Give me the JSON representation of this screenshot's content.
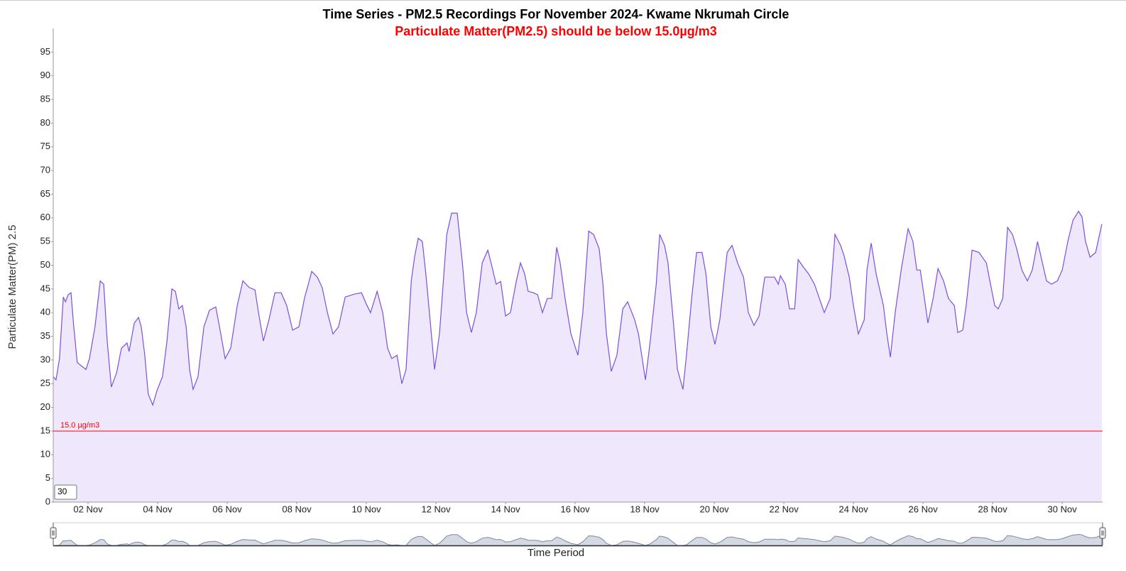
{
  "chart_data": {
    "type": "area",
    "title": "Time Series - PM2.5 Recordings For November 2024- Kwame Nkrumah Circle",
    "subtitle": "Particulate Matter(PM2.5) should be below 15.0µg/m3",
    "y_label": "Particulate Matter(PM) 2.5",
    "x_label": "Time Period",
    "threshold": {
      "value": 15,
      "label": "15.0 µg/m3",
      "color": "#ff0000"
    },
    "window": "30",
    "color": "#7b4fe0",
    "fill_color": "#efe8fc",
    "navigator_color": "#7a8aa8",
    "navigator_fill": "#d5d9e2",
    "grid": false,
    "xlim": [
      1,
      31.16
    ],
    "xticks": [
      {
        "value": 2,
        "label": "02 Nov"
      },
      {
        "value": 4,
        "label": "04 Nov"
      },
      {
        "value": 6,
        "label": "06 Nov"
      },
      {
        "value": 8,
        "label": "08 Nov"
      },
      {
        "value": 10,
        "label": "10 Nov"
      },
      {
        "value": 12,
        "label": "12 Nov"
      },
      {
        "value": 14,
        "label": "14 Nov"
      },
      {
        "value": 16,
        "label": "16 Nov"
      },
      {
        "value": 18,
        "label": "18 Nov"
      },
      {
        "value": 20,
        "label": "20 Nov"
      },
      {
        "value": 22,
        "label": "22 Nov"
      },
      {
        "value": 24,
        "label": "24 Nov"
      },
      {
        "value": 26,
        "label": "26 Nov"
      },
      {
        "value": 28,
        "label": "28 Nov"
      },
      {
        "value": 30,
        "label": "30 Nov"
      }
    ],
    "ylim": [
      0,
      100
    ],
    "yticks": [
      0,
      5,
      10,
      15,
      20,
      25,
      30,
      35,
      40,
      45,
      50,
      55,
      60,
      65,
      70,
      75,
      80,
      85,
      90,
      95
    ],
    "x": [
      1.0,
      1.08,
      1.18,
      1.29,
      1.35,
      1.43,
      1.51,
      1.59,
      1.69,
      1.8,
      1.94,
      2.04,
      2.2,
      2.35,
      2.45,
      2.55,
      2.67,
      2.82,
      2.96,
      3.12,
      3.18,
      3.33,
      3.45,
      3.53,
      3.63,
      3.73,
      3.86,
      3.98,
      4.14,
      4.27,
      4.41,
      4.51,
      4.61,
      4.71,
      4.82,
      4.92,
      5.02,
      5.16,
      5.33,
      5.49,
      5.67,
      5.78,
      5.94,
      6.1,
      6.29,
      6.45,
      6.63,
      6.8,
      6.9,
      7.04,
      7.2,
      7.37,
      7.55,
      7.71,
      7.88,
      8.06,
      8.22,
      8.43,
      8.59,
      8.73,
      8.88,
      9.04,
      9.2,
      9.39,
      9.65,
      9.86,
      10.0,
      10.12,
      10.31,
      10.47,
      10.61,
      10.73,
      10.88,
      11.02,
      11.14,
      11.29,
      11.39,
      11.49,
      11.61,
      11.71,
      11.84,
      11.96,
      12.1,
      12.31,
      12.45,
      12.61,
      12.76,
      12.88,
      13.02,
      13.16,
      13.33,
      13.49,
      13.61,
      13.73,
      13.86,
      14.0,
      14.14,
      14.31,
      14.43,
      14.55,
      14.65,
      14.8,
      14.92,
      15.06,
      15.2,
      15.33,
      15.47,
      15.57,
      15.71,
      15.88,
      16.08,
      16.22,
      16.39,
      16.53,
      16.69,
      16.8,
      16.9,
      17.04,
      17.2,
      17.37,
      17.51,
      17.71,
      17.82,
      18.02,
      18.16,
      18.33,
      18.43,
      18.57,
      18.67,
      18.8,
      18.94,
      19.1,
      19.2,
      19.35,
      19.49,
      19.65,
      19.76,
      19.9,
      20.02,
      20.16,
      20.37,
      20.51,
      20.67,
      20.84,
      20.98,
      21.14,
      21.29,
      21.45,
      21.59,
      21.73,
      21.84,
      21.9,
      22.04,
      22.16,
      22.31,
      22.41,
      22.55,
      22.71,
      22.88,
      23.02,
      23.16,
      23.33,
      23.47,
      23.63,
      23.73,
      23.88,
      24.0,
      24.14,
      24.31,
      24.39,
      24.51,
      24.65,
      24.86,
      24.96,
      25.06,
      25.2,
      25.37,
      25.57,
      25.71,
      25.82,
      25.92,
      26.04,
      26.14,
      26.29,
      26.43,
      26.59,
      26.73,
      26.9,
      27.0,
      27.14,
      27.24,
      27.41,
      27.61,
      27.82,
      27.94,
      28.06,
      28.16,
      28.29,
      28.43,
      28.57,
      28.69,
      28.84,
      29.0,
      29.14,
      29.29,
      29.41,
      29.55,
      29.69,
      29.86,
      30.0,
      30.16,
      30.31,
      30.47,
      30.57,
      30.67,
      30.8,
      30.96,
      31.14
    ],
    "values": [
      26.5,
      25.8,
      30.3,
      43.3,
      42.3,
      43.8,
      44.2,
      37.0,
      29.5,
      28.8,
      28.0,
      30.3,
      37.0,
      46.7,
      46.0,
      34.0,
      24.3,
      27.3,
      32.5,
      33.6,
      31.8,
      37.8,
      39.0,
      37.0,
      31.0,
      22.8,
      20.5,
      23.5,
      26.5,
      34.0,
      45.0,
      44.5,
      40.8,
      41.5,
      37.0,
      28.0,
      23.8,
      26.5,
      37.0,
      40.5,
      41.2,
      37.0,
      30.3,
      32.5,
      41.5,
      46.7,
      45.3,
      44.8,
      40.0,
      34.0,
      38.5,
      44.2,
      44.2,
      41.5,
      36.3,
      37.0,
      43.0,
      48.7,
      47.5,
      45.3,
      40.0,
      35.5,
      37.0,
      43.3,
      43.9,
      44.2,
      41.8,
      40.0,
      44.5,
      40.0,
      32.5,
      30.3,
      31.0,
      25.0,
      28.0,
      46.7,
      52.0,
      55.7,
      55.0,
      48.2,
      37.8,
      28.0,
      35.5,
      56.5,
      61.0,
      61.0,
      50.5,
      40.0,
      35.8,
      40.0,
      50.5,
      53.2,
      49.7,
      46.0,
      46.6,
      39.3,
      40.0,
      46.7,
      50.5,
      48.2,
      44.5,
      44.2,
      43.8,
      40.0,
      43.0,
      43.0,
      53.8,
      50.5,
      43.0,
      35.5,
      31.0,
      40.0,
      57.2,
      56.5,
      53.5,
      46.0,
      35.5,
      27.6,
      31.0,
      40.8,
      42.3,
      38.5,
      35.5,
      25.8,
      34.0,
      46.0,
      56.5,
      54.2,
      50.5,
      40.0,
      28.0,
      23.8,
      31.0,
      43.0,
      52.7,
      52.7,
      48.2,
      37.0,
      33.3,
      38.5,
      52.7,
      54.2,
      50.5,
      47.5,
      40.0,
      37.3,
      39.3,
      47.5,
      47.5,
      47.5,
      46.0,
      47.8,
      46.0,
      40.8,
      40.8,
      51.2,
      49.7,
      48.2,
      46.0,
      43.0,
      40.0,
      43.0,
      56.5,
      54.2,
      52.0,
      47.5,
      41.5,
      35.5,
      38.5,
      49.0,
      54.7,
      48.2,
      41.5,
      35.5,
      30.6,
      40.0,
      49.0,
      57.7,
      55.0,
      49.0,
      49.0,
      43.0,
      37.8,
      43.0,
      49.3,
      46.7,
      43.0,
      41.5,
      35.8,
      36.3,
      41.5,
      53.2,
      52.7,
      50.5,
      46.0,
      41.5,
      40.8,
      43.0,
      58.0,
      56.5,
      53.5,
      49.0,
      46.7,
      49.0,
      55.0,
      51.2,
      46.7,
      46.0,
      46.7,
      49.0,
      55.0,
      59.5,
      61.4,
      60.2,
      55.0,
      51.7,
      52.7,
      58.7
    ]
  }
}
